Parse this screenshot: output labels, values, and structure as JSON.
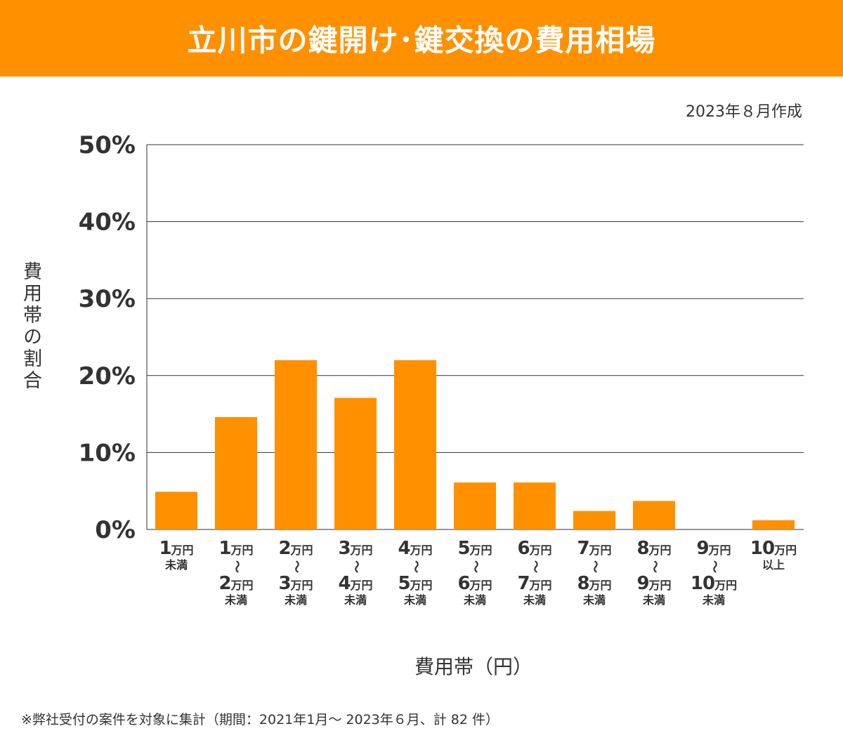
{
  "header": {
    "title": "立川市の鍵開け･鍵交換の費用相場"
  },
  "created": "2023年８月作成",
  "footnote": "※弊社受付の案件を対象に集計（期間：2021年1月～ 2023年６月、計 82 件）",
  "chart_data": {
    "type": "bar",
    "title": "立川市の鍵開け･鍵交換の費用相場",
    "xlabel": "費用帯（円）",
    "ylabel": "費用帯の割合",
    "ylim": [
      0,
      50
    ],
    "yticks": [
      "0%",
      "10%",
      "20%",
      "30%",
      "40%",
      "50%"
    ],
    "grid": true,
    "bar_color": "#ff9000",
    "categories": [
      {
        "from_num": "1",
        "from_unit": "万円",
        "suffix": "未満"
      },
      {
        "from_num": "1",
        "from_unit": "万円",
        "sep": "～",
        "to_num": "2",
        "to_unit": "万円",
        "suffix": "未満"
      },
      {
        "from_num": "2",
        "from_unit": "万円",
        "sep": "～",
        "to_num": "3",
        "to_unit": "万円",
        "suffix": "未満"
      },
      {
        "from_num": "3",
        "from_unit": "万円",
        "sep": "～",
        "to_num": "4",
        "to_unit": "万円",
        "suffix": "未満"
      },
      {
        "from_num": "4",
        "from_unit": "万円",
        "sep": "～",
        "to_num": "5",
        "to_unit": "万円",
        "suffix": "未満"
      },
      {
        "from_num": "5",
        "from_unit": "万円",
        "sep": "～",
        "to_num": "6",
        "to_unit": "万円",
        "suffix": "未満"
      },
      {
        "from_num": "6",
        "from_unit": "万円",
        "sep": "～",
        "to_num": "7",
        "to_unit": "万円",
        "suffix": "未満"
      },
      {
        "from_num": "7",
        "from_unit": "万円",
        "sep": "～",
        "to_num": "8",
        "to_unit": "万円",
        "suffix": "未満"
      },
      {
        "from_num": "8",
        "from_unit": "万円",
        "sep": "～",
        "to_num": "9",
        "to_unit": "万円",
        "suffix": "未満"
      },
      {
        "from_num": "9",
        "from_unit": "万円",
        "sep": "～",
        "to_num": "10",
        "to_unit": "万円",
        "suffix": "未満"
      },
      {
        "from_num": "10",
        "from_unit": "万円",
        "suffix": "以上"
      }
    ],
    "values": [
      4.9,
      14.6,
      22.0,
      17.1,
      22.0,
      6.1,
      6.1,
      2.4,
      3.7,
      0,
      1.2
    ]
  }
}
